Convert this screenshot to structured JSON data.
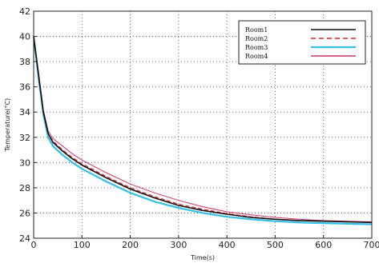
{
  "chart_data": {
    "type": "line",
    "title": "",
    "xlabel": "Time(s)",
    "ylabel": "Temperature(°C)",
    "xlim": [
      0,
      700
    ],
    "ylim": [
      24,
      42
    ],
    "x_ticks": [
      0,
      100,
      200,
      300,
      400,
      500,
      600,
      700
    ],
    "y_ticks": [
      24,
      26,
      28,
      30,
      32,
      34,
      36,
      38,
      40,
      42
    ],
    "grid": true,
    "grid_style": "dotted",
    "legend_position": "top-right",
    "series": [
      {
        "name": "Room1",
        "color": "#111111",
        "dash": "solid",
        "x": [
          0,
          10,
          20,
          30,
          40,
          60,
          80,
          100,
          150,
          200,
          250,
          300,
          350,
          400,
          450,
          500,
          550,
          600,
          650,
          700
        ],
        "y": [
          40.0,
          37.0,
          34.0,
          32.3,
          31.6,
          30.9,
          30.3,
          29.8,
          28.8,
          27.9,
          27.2,
          26.6,
          26.2,
          25.9,
          25.65,
          25.5,
          25.4,
          25.35,
          25.3,
          25.25
        ]
      },
      {
        "name": "Room2",
        "color": "#e0202a",
        "dash": "dashed",
        "x": [
          0,
          10,
          20,
          30,
          40,
          60,
          80,
          100,
          150,
          200,
          250,
          300,
          350,
          400,
          450,
          500,
          550,
          600,
          650,
          700
        ],
        "y": [
          40.0,
          37.0,
          34.0,
          32.3,
          31.7,
          31.0,
          30.4,
          29.9,
          28.9,
          28.0,
          27.3,
          26.7,
          26.3,
          25.95,
          25.7,
          25.5,
          25.4,
          25.35,
          25.3,
          25.25
        ]
      },
      {
        "name": "Room3",
        "color": "#33bfe8",
        "dash": "solid",
        "x": [
          0,
          10,
          20,
          30,
          40,
          60,
          80,
          100,
          150,
          200,
          250,
          300,
          350,
          400,
          450,
          500,
          550,
          600,
          650,
          700
        ],
        "y": [
          40.0,
          36.8,
          33.8,
          32.0,
          31.3,
          30.6,
          30.0,
          29.5,
          28.5,
          27.6,
          26.9,
          26.4,
          26.0,
          25.7,
          25.5,
          25.35,
          25.25,
          25.2,
          25.15,
          25.1
        ]
      },
      {
        "name": "Room4",
        "color": "#cc3366",
        "dash": "solid",
        "x": [
          0,
          10,
          20,
          30,
          40,
          60,
          80,
          100,
          150,
          200,
          250,
          300,
          350,
          400,
          450,
          500,
          550,
          600,
          650,
          700
        ],
        "y": [
          40.0,
          37.2,
          34.2,
          32.5,
          31.9,
          31.3,
          30.7,
          30.2,
          29.2,
          28.3,
          27.6,
          27.0,
          26.5,
          26.1,
          25.85,
          25.65,
          25.5,
          25.4,
          25.35,
          25.3
        ]
      }
    ]
  }
}
